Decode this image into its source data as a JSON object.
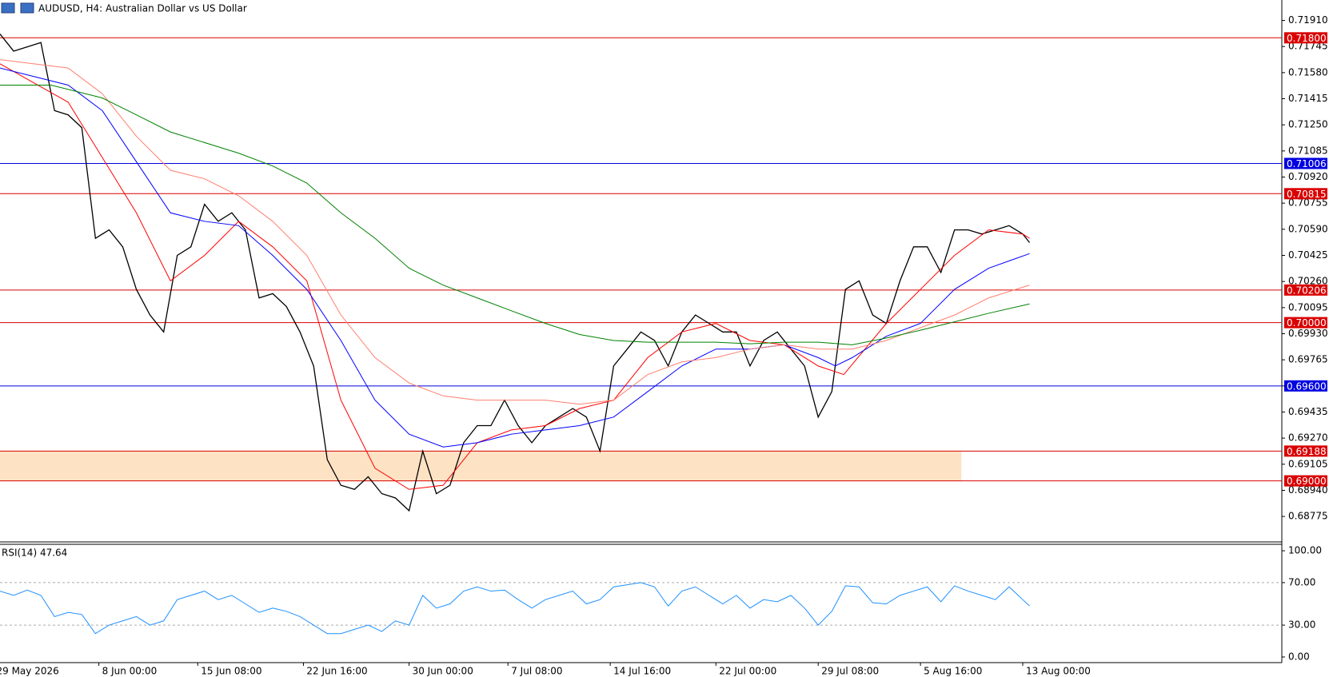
{
  "chart_data": [
    {
      "type": "line",
      "title": "AUDUSD, H4:  Australian Dollar vs US Dollar",
      "xlim": [
        0,
        376
      ],
      "ylim": [
        0.68614,
        0.72039
      ],
      "yticks": [
        {
          "value": 0.7191,
          "label": "0.71910"
        },
        {
          "value": 0.71745,
          "label": "0.71745"
        },
        {
          "value": 0.7158,
          "label": "0.71580"
        },
        {
          "value": 0.71415,
          "label": "0.71415"
        },
        {
          "value": 0.7125,
          "label": "0.71250"
        },
        {
          "value": 0.71085,
          "label": "0.71085"
        },
        {
          "value": 0.7092,
          "label": "0.70920"
        },
        {
          "value": 0.70755,
          "label": "0.70755"
        },
        {
          "value": 0.7059,
          "label": "0.70590"
        },
        {
          "value": 0.70425,
          "label": "0.70425"
        },
        {
          "value": 0.7026,
          "label": "0.70260"
        },
        {
          "value": 0.70095,
          "label": "0.70095"
        },
        {
          "value": 0.6993,
          "label": "0.69930"
        },
        {
          "value": 0.69765,
          "label": "0.69765"
        },
        {
          "value": 0.696,
          "label": "0.69600"
        },
        {
          "value": 0.69435,
          "label": "0.69435"
        },
        {
          "value": 0.6927,
          "label": "0.69270"
        },
        {
          "value": 0.69105,
          "label": "0.69105"
        },
        {
          "value": 0.6894,
          "label": "0.68940"
        },
        {
          "value": 0.68775,
          "label": "0.68775"
        }
      ],
      "levels": [
        {
          "value": 0.718,
          "label": "0.71800",
          "color": "#d90000"
        },
        {
          "value": 0.71006,
          "label": "0.71006",
          "color": "#0000e0"
        },
        {
          "value": 0.70815,
          "label": "0.70815",
          "color": "#d90000"
        },
        {
          "value": 0.70206,
          "label": "0.70206",
          "color": "#d90000"
        },
        {
          "value": 0.7,
          "label": "0.70000",
          "color": "#d90000"
        },
        {
          "value": 0.696,
          "label": "0.69600",
          "color": "#0000e0"
        },
        {
          "value": 0.69188,
          "label": "0.69188",
          "color": "#d90000"
        },
        {
          "value": 0.69,
          "label": "0.69000",
          "color": "#d90000"
        }
      ],
      "zone": {
        "from": 0.69,
        "to": 0.69188,
        "xlim": [
          0,
          282
        ],
        "color": "#fde2c4"
      },
      "series": [
        {
          "color": "#000000",
          "x": [
            0,
            4,
            8,
            12,
            16,
            20,
            24,
            28,
            32,
            36,
            40,
            44,
            48,
            52,
            56,
            60,
            64,
            68,
            72,
            76,
            80,
            84,
            88,
            92,
            96,
            100,
            104,
            108,
            112,
            116,
            120,
            124,
            128,
            132,
            136,
            140,
            144,
            148,
            152,
            156,
            160,
            164,
            168,
            172,
            176,
            180,
            184,
            188,
            192,
            196,
            200,
            204,
            208,
            212,
            216,
            220,
            224,
            228,
            232,
            236,
            240,
            244,
            248,
            252,
            256,
            260,
            264,
            268,
            272,
            276,
            280,
            284,
            288,
            292,
            296,
            300,
            302
          ],
          "values": [
            0.71824,
            0.71716,
            0.71743,
            0.7177,
            0.7134,
            0.71313,
            0.71232,
            0.70533,
            0.70586,
            0.70479,
            0.7021,
            0.70048,
            0.69941,
            0.70425,
            0.70479,
            0.70748,
            0.7064,
            0.70694,
            0.70586,
            0.70156,
            0.70183,
            0.70102,
            0.69941,
            0.69726,
            0.69134,
            0.68972,
            0.68946,
            0.69026,
            0.68919,
            0.68892,
            0.68811,
            0.69188,
            0.68919,
            0.68972,
            0.69241,
            0.69349,
            0.69349,
            0.6951,
            0.69349,
            0.69241,
            0.69349,
            0.69403,
            0.69457,
            0.69403,
            0.69188,
            0.69726,
            0.69833,
            0.69941,
            0.69887,
            0.69726,
            0.69941,
            0.70048,
            0.69995,
            0.69941,
            0.69941,
            0.69726,
            0.69887,
            0.69941,
            0.69833,
            0.69726,
            0.69403,
            0.69564,
            0.7021,
            0.70264,
            0.70048,
            0.69995,
            0.70264,
            0.70479,
            0.70479,
            0.70317,
            0.70586,
            0.70586,
            0.7056,
            0.70586,
            0.70613,
            0.7056,
            0.70506
          ]
        },
        {
          "color": "#ff0000",
          "x": [
            0,
            20,
            40,
            50,
            60,
            70,
            80,
            90,
            100,
            110,
            120,
            130,
            140,
            150,
            160,
            170,
            180,
            190,
            200,
            210,
            220,
            230,
            240,
            247.5,
            260,
            270,
            280,
            290,
            300,
            302
          ],
          "values": [
            0.71636,
            0.71393,
            0.70694,
            0.70264,
            0.70425,
            0.7064,
            0.70479,
            0.70264,
            0.6951,
            0.6908,
            0.68946,
            0.68972,
            0.69241,
            0.69322,
            0.69349,
            0.69457,
            0.6951,
            0.69779,
            0.69941,
            0.69995,
            0.69887,
            0.6986,
            0.69726,
            0.69672,
            0.69995,
            0.7021,
            0.70425,
            0.70586,
            0.7056,
            0.70533
          ]
        },
        {
          "color": "#0000ff",
          "x": [
            0,
            20,
            30,
            40,
            50,
            60,
            70,
            80,
            90,
            100,
            110,
            120,
            130,
            140,
            150,
            160,
            170,
            180,
            190,
            200,
            210,
            220,
            230,
            240,
            245,
            250,
            260,
            270,
            280,
            290,
            302
          ],
          "values": [
            0.71609,
            0.71501,
            0.7134,
            0.71017,
            0.70694,
            0.7064,
            0.70613,
            0.70425,
            0.7021,
            0.69887,
            0.6951,
            0.69295,
            0.69214,
            0.69241,
            0.69295,
            0.69322,
            0.69349,
            0.69403,
            0.69564,
            0.69726,
            0.69833,
            0.69833,
            0.6986,
            0.69779,
            0.69726,
            0.69779,
            0.69914,
            0.69995,
            0.7021,
            0.70344,
            0.70436
          ]
        },
        {
          "color": "#ff7f6e",
          "x": [
            0,
            20,
            30,
            40,
            50,
            60,
            70,
            80,
            90,
            100,
            110,
            120,
            130,
            140,
            150,
            160,
            170,
            180,
            190,
            200,
            210,
            220,
            230,
            240,
            250,
            260,
            270,
            280,
            290,
            302
          ],
          "values": [
            0.71662,
            0.71609,
            0.71447,
            0.71178,
            0.70963,
            0.70909,
            0.70802,
            0.7064,
            0.70425,
            0.70048,
            0.69779,
            0.69618,
            0.69537,
            0.6951,
            0.6951,
            0.6951,
            0.69484,
            0.6951,
            0.69672,
            0.69752,
            0.69779,
            0.69833,
            0.6986,
            0.69833,
            0.69833,
            0.69887,
            0.69968,
            0.70048,
            0.70156,
            0.70237
          ]
        },
        {
          "color": "#008000",
          "x": [
            0,
            15,
            30,
            40,
            50,
            70,
            80,
            90,
            100,
            110,
            120,
            130,
            140,
            150,
            160,
            170,
            180,
            190,
            200,
            210,
            220,
            230,
            240,
            250,
            260,
            270,
            280,
            290,
            302
          ],
          "values": [
            0.71501,
            0.71501,
            0.7142,
            0.71313,
            0.71205,
            0.71071,
            0.7099,
            0.70882,
            0.70694,
            0.70533,
            0.70344,
            0.70237,
            0.70156,
            0.70075,
            0.69995,
            0.69925,
            0.69887,
            0.69876,
            0.69876,
            0.69876,
            0.69866,
            0.69876,
            0.69876,
            0.6986,
            0.69903,
            0.69952,
            0.70005,
            0.70059,
            0.70118
          ]
        }
      ]
    },
    {
      "type": "line",
      "title": "RSI(14) 47.64",
      "xlim": [
        0,
        376
      ],
      "ylim": [
        -5.3,
        103.8
      ],
      "yticks": [
        {
          "value": 100,
          "label": "100.00"
        },
        {
          "value": 70,
          "label": "70.00"
        },
        {
          "value": 30,
          "label": "30.00"
        },
        {
          "value": 0,
          "label": "0.00"
        }
      ],
      "levels": [
        70,
        30
      ],
      "xticks": [
        {
          "value": -2,
          "label": "29 May 2026"
        },
        {
          "value": 29,
          "label": "8 Jun 00:00"
        },
        {
          "value": 58,
          "label": "15 Jun 08:00"
        },
        {
          "value": 89,
          "label": "22 Jun 16:00"
        },
        {
          "value": 120,
          "label": "30 Jun 00:00"
        },
        {
          "value": 149,
          "label": "7 Jul 08:00"
        },
        {
          "value": 179,
          "label": "14 Jul 16:00"
        },
        {
          "value": 210,
          "label": "22 Jul 00:00"
        },
        {
          "value": 240,
          "label": "29 Jul 08:00"
        },
        {
          "value": 270,
          "label": "5 Aug 16:00"
        },
        {
          "value": 300,
          "label": "13 Aug 00:00"
        }
      ],
      "series": [
        {
          "color": "#1e90ff",
          "x": [
            0,
            4,
            8,
            12,
            16,
            20,
            24,
            28,
            32,
            36,
            40,
            44,
            48,
            52,
            56,
            60,
            64,
            68,
            72,
            76,
            80,
            84,
            88,
            92,
            96,
            100,
            104,
            108,
            112,
            116,
            120,
            124,
            128,
            132,
            136,
            140,
            144,
            148,
            152,
            156,
            160,
            164,
            168,
            172,
            176,
            180,
            184,
            188,
            192,
            196,
            200,
            204,
            208,
            212,
            216,
            220,
            224,
            228,
            232,
            236,
            240,
            244,
            248,
            252,
            256,
            260,
            264,
            268,
            272,
            276,
            280,
            284,
            288,
            292,
            296,
            300,
            302
          ],
          "values": [
            62,
            58,
            63,
            58,
            38,
            42,
            40,
            22,
            30,
            34,
            38,
            30,
            34,
            54,
            58,
            62,
            54,
            58,
            50,
            42,
            46,
            43,
            38,
            30,
            22,
            22,
            26,
            30,
            24,
            34,
            30,
            58,
            46,
            50,
            62,
            66,
            62,
            63,
            54,
            46,
            54,
            58,
            62,
            50,
            54,
            66,
            68,
            70,
            66,
            48,
            62,
            66,
            58,
            50,
            58,
            46,
            54,
            52,
            58,
            46,
            30,
            43,
            67,
            66,
            51,
            50,
            58,
            62,
            66,
            52,
            67,
            62,
            58,
            54,
            66,
            54,
            48
          ]
        }
      ]
    }
  ]
}
